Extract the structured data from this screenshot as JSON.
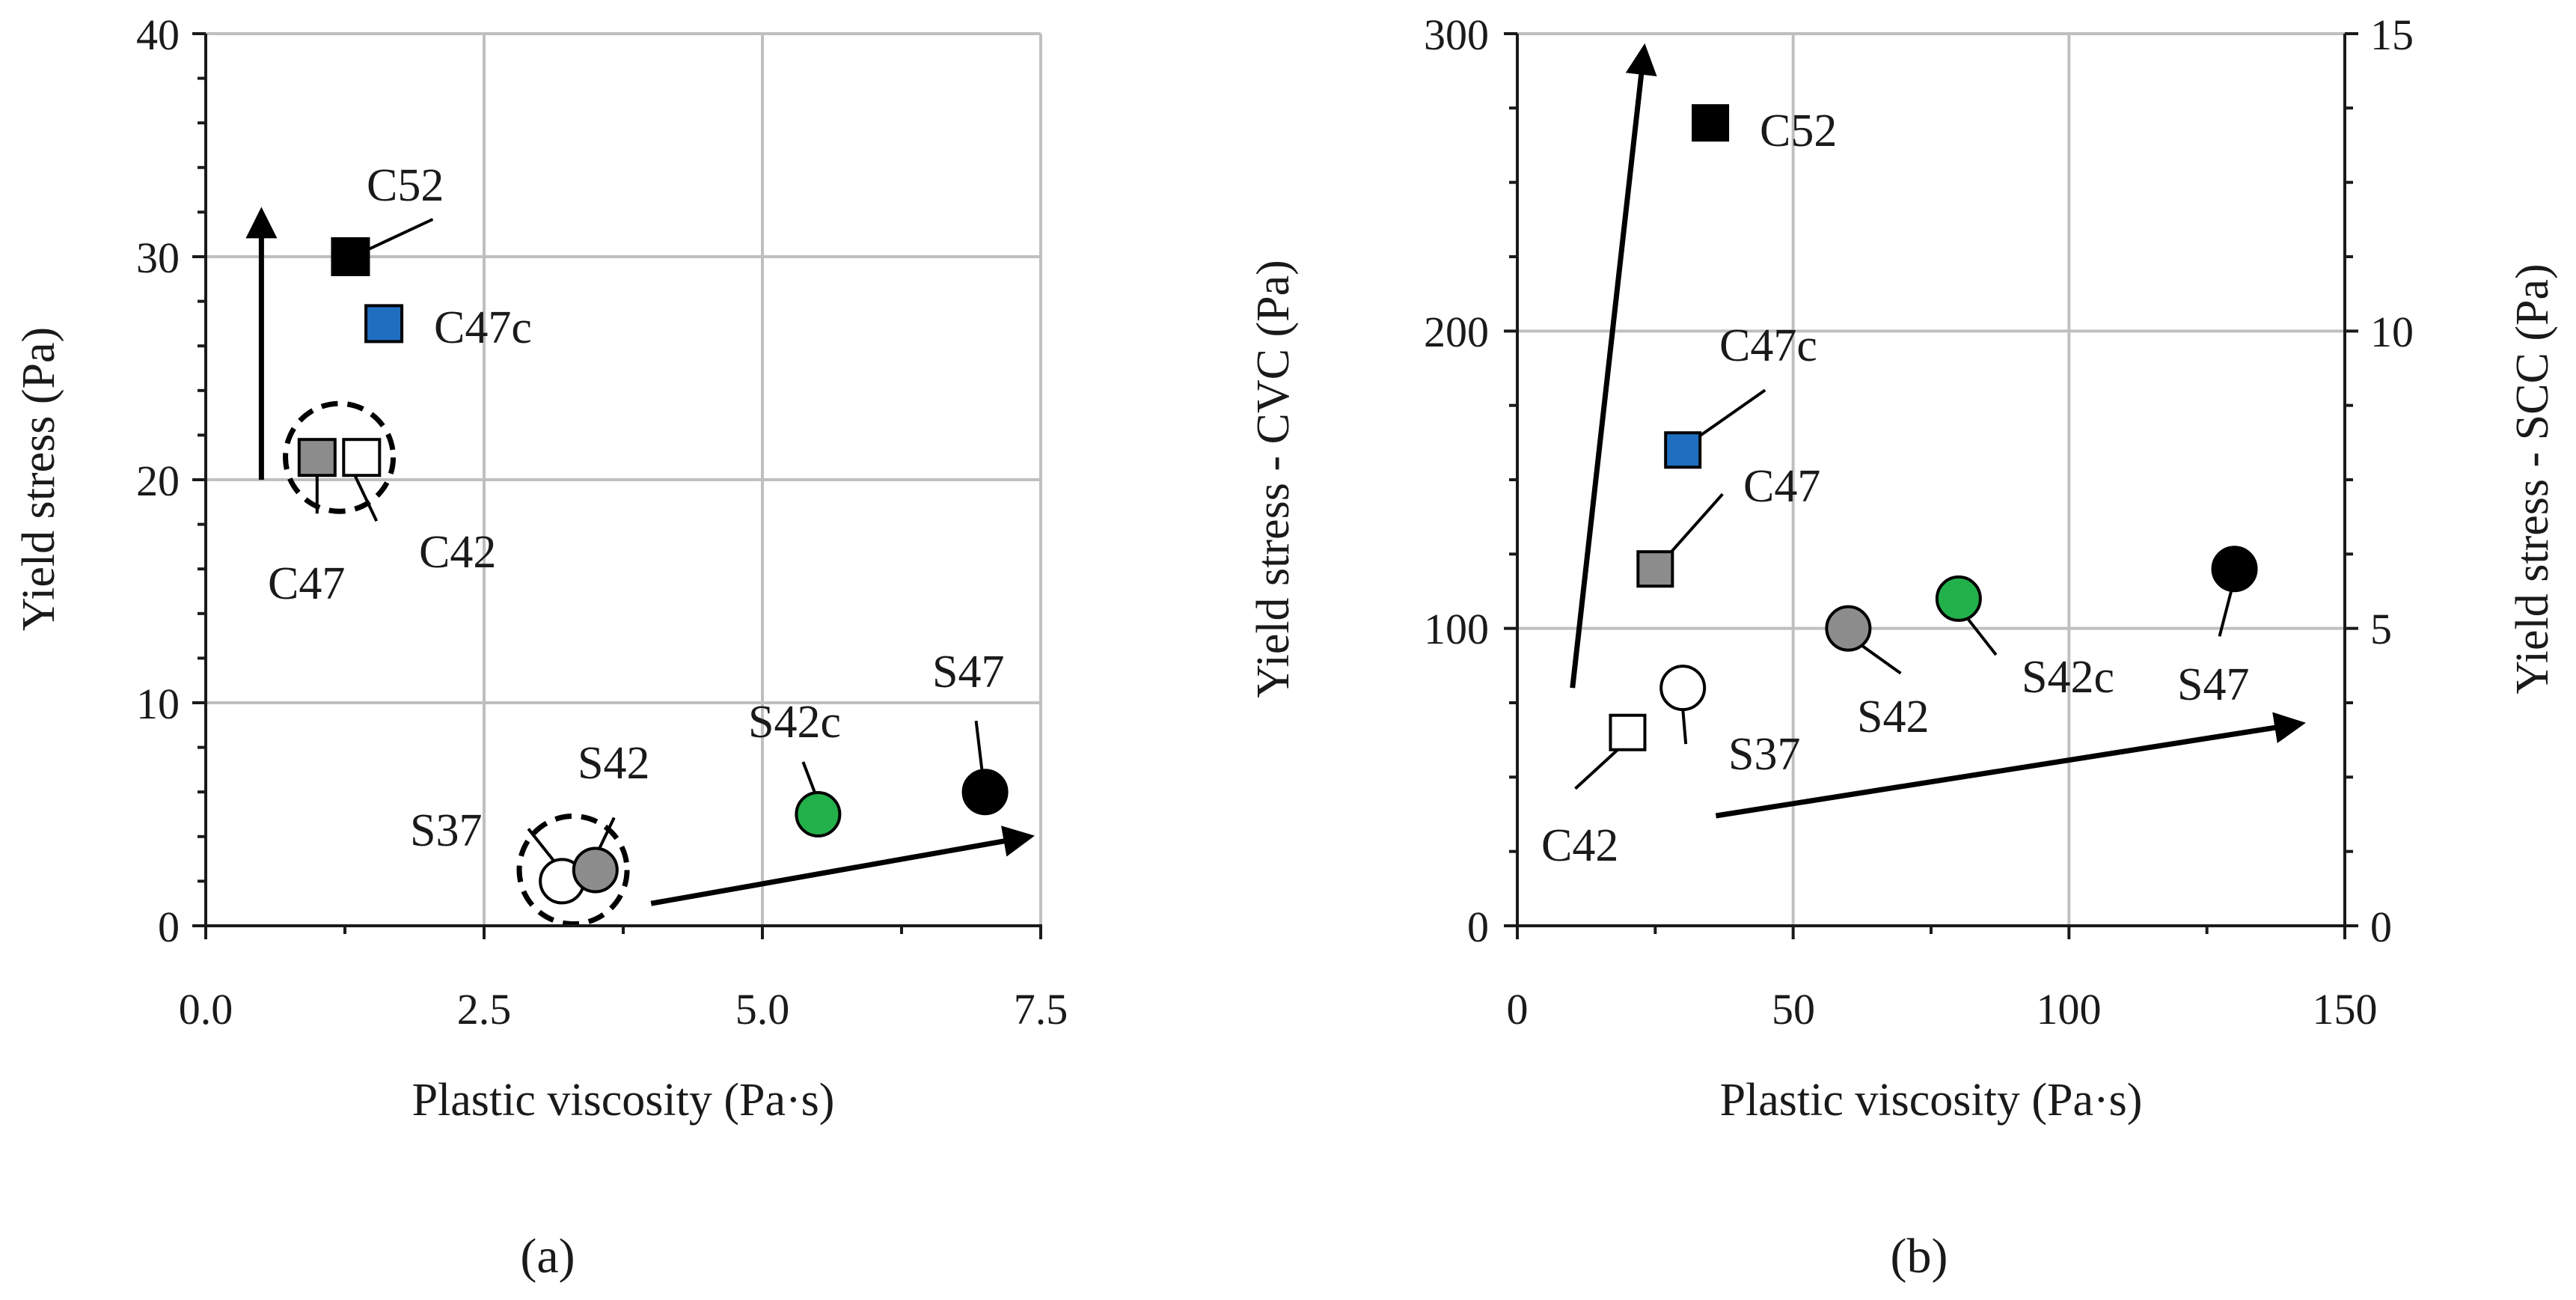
{
  "colors": {
    "black": "#000000",
    "gray": "#8c8c8c",
    "white": "#ffffff",
    "blue": "#1f6fc1",
    "green": "#22b04a",
    "grid": "#bfbfbf",
    "axis": "#1a1a1a"
  },
  "chart_data": [
    {
      "type": "scatter",
      "panel_label": "(a)",
      "xlabel": "Plastic viscosity (Pa·s)",
      "ylabel": "Yield stress (Pa)",
      "xlim": [
        0,
        7.5
      ],
      "ylim": [
        0,
        40
      ],
      "xticks": [
        "0.0",
        "2.5",
        "5.0",
        "7.5"
      ],
      "yticks": [
        "0",
        "10",
        "20",
        "30",
        "40"
      ],
      "grid": true,
      "points": [
        {
          "name": "C52",
          "x": 1.3,
          "y": 30,
          "marker": "square",
          "color": "black"
        },
        {
          "name": "C47c",
          "x": 1.6,
          "y": 27,
          "marker": "square",
          "color": "blue"
        },
        {
          "name": "C47",
          "x": 1.0,
          "y": 21,
          "marker": "square",
          "color": "gray"
        },
        {
          "name": "C42",
          "x": 1.4,
          "y": 21,
          "marker": "square",
          "color": "white"
        },
        {
          "name": "S37",
          "x": 3.2,
          "y": 2,
          "marker": "circle",
          "color": "white"
        },
        {
          "name": "S42",
          "x": 3.5,
          "y": 2.5,
          "marker": "circle",
          "color": "gray"
        },
        {
          "name": "S42c",
          "x": 5.5,
          "y": 5,
          "marker": "circle",
          "color": "green"
        },
        {
          "name": "S47",
          "x": 7.0,
          "y": 6,
          "marker": "circle",
          "color": "black"
        }
      ],
      "arrows": [
        {
          "from": [
            0.5,
            20
          ],
          "to": [
            0.5,
            32
          ]
        },
        {
          "from": [
            4.0,
            1
          ],
          "to": [
            7.4,
            4
          ]
        }
      ],
      "groups": [
        {
          "center": [
            1.2,
            21
          ],
          "members": [
            "C47",
            "C42"
          ]
        },
        {
          "center": [
            3.3,
            2.5
          ],
          "members": [
            "S37",
            "S42"
          ]
        }
      ]
    },
    {
      "type": "scatter",
      "panel_label": "(b)",
      "xlabel": "Plastic viscosity (Pa·s)",
      "ylabel": "Yield stress - CVC (Pa)",
      "ylabel_right": "Yield stress - SCC (Pa)",
      "xlim": [
        0,
        150
      ],
      "ylim": [
        0,
        300
      ],
      "ylim_right": [
        0,
        15
      ],
      "xticks": [
        "0",
        "50",
        "100",
        "150"
      ],
      "yticks": [
        "0",
        "100",
        "200",
        "300"
      ],
      "yticks_right": [
        "0",
        "5",
        "10",
        "15"
      ],
      "grid": true,
      "points": [
        {
          "name": "C52",
          "x": 35,
          "y": 270,
          "axis": "left",
          "marker": "square",
          "color": "black"
        },
        {
          "name": "C47c",
          "x": 30,
          "y": 160,
          "axis": "left",
          "marker": "square",
          "color": "blue"
        },
        {
          "name": "C47",
          "x": 25,
          "y": 120,
          "axis": "left",
          "marker": "square",
          "color": "gray"
        },
        {
          "name": "C42",
          "x": 20,
          "y": 65,
          "axis": "left",
          "marker": "square",
          "color": "white"
        },
        {
          "name": "S37",
          "x": 30,
          "y": 4,
          "axis": "right",
          "marker": "circle",
          "color": "white"
        },
        {
          "name": "S42",
          "x": 60,
          "y": 5,
          "axis": "right",
          "marker": "circle",
          "color": "gray"
        },
        {
          "name": "S42c",
          "x": 80,
          "y": 5.5,
          "axis": "right",
          "marker": "circle",
          "color": "green"
        },
        {
          "name": "S47",
          "x": 130,
          "y": 6,
          "axis": "right",
          "marker": "circle",
          "color": "black"
        }
      ],
      "arrows": [
        {
          "from": [
            10,
            80
          ],
          "to": [
            23,
            295
          ]
        },
        {
          "from": [
            36,
            37
          ],
          "to": [
            142,
            68
          ]
        }
      ]
    }
  ]
}
